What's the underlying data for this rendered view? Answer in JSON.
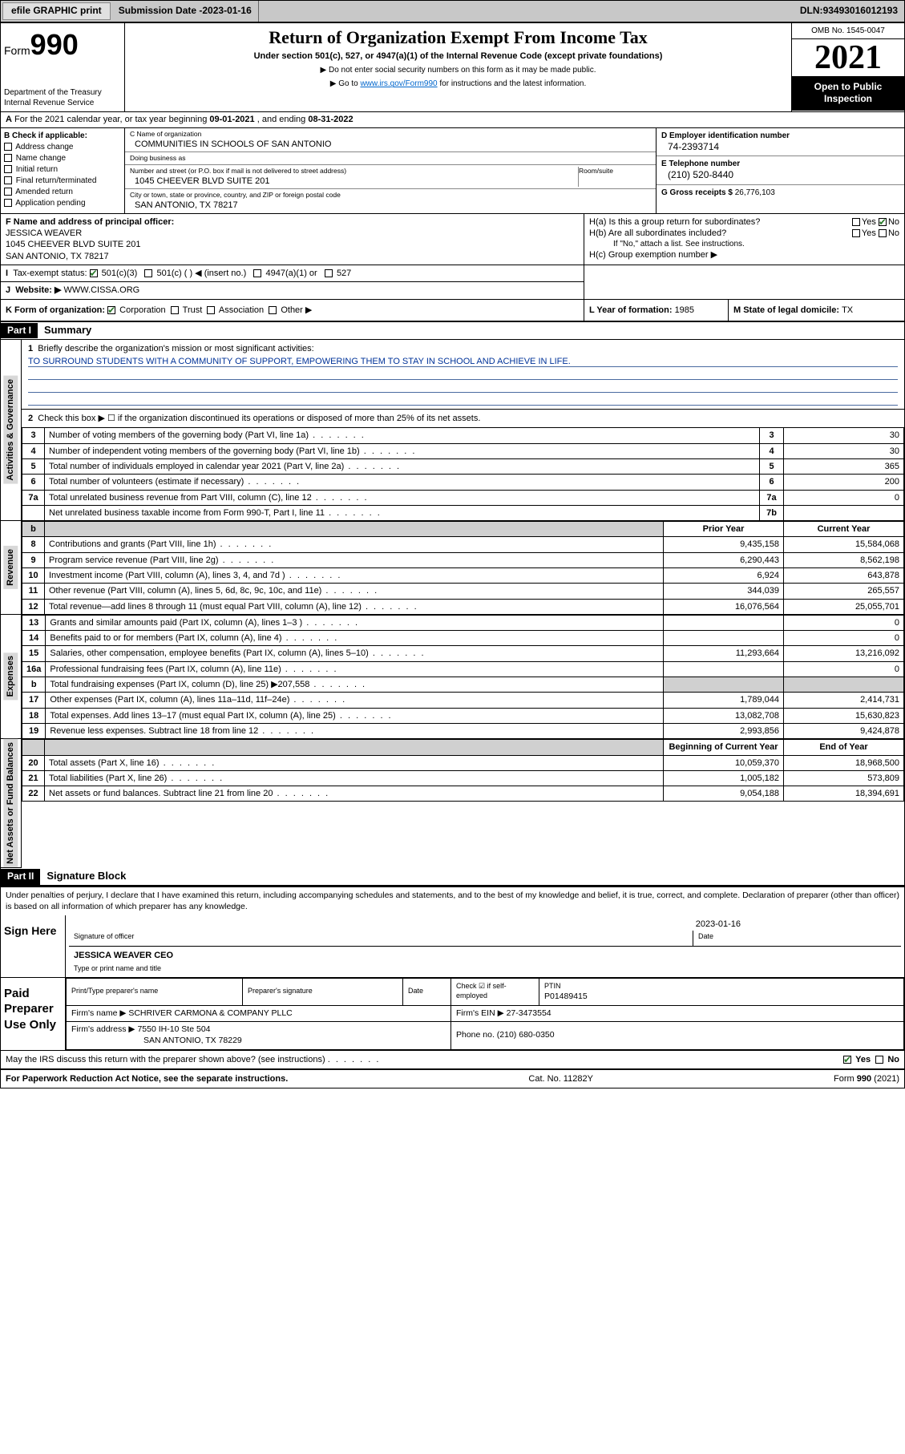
{
  "topbar": {
    "efile": "efile GRAPHIC print",
    "sub_label": "Submission Date - ",
    "sub_date": "2023-01-16",
    "dln_label": "DLN: ",
    "dln": "93493016012193"
  },
  "header": {
    "form_prefix": "Form",
    "form_num": "990",
    "dept": "Department of the Treasury\nInternal Revenue Service",
    "title": "Return of Organization Exempt From Income Tax",
    "subtitle": "Under section 501(c), 527, or 4947(a)(1) of the Internal Revenue Code (except private foundations)",
    "note1": "▶ Do not enter social security numbers on this form as it may be made public.",
    "note2_pre": "▶ Go to ",
    "note2_link": "www.irs.gov/Form990",
    "note2_post": " for instructions and the latest information.",
    "omb": "OMB No. 1545-0047",
    "year": "2021",
    "inspect": "Open to Public Inspection"
  },
  "row_a": {
    "label_a": "A",
    "text": "For the 2021 calendar year, or tax year beginning ",
    "begin": "09-01-2021",
    "mid": " , and ending ",
    "end": "08-31-2022"
  },
  "col_b": {
    "label": "B Check if applicable:",
    "items": [
      "Address change",
      "Name change",
      "Initial return",
      "Final return/terminated",
      "Amended return",
      "Application pending"
    ]
  },
  "col_c": {
    "name_lbl": "C Name of organization",
    "name": "COMMUNITIES IN SCHOOLS OF SAN ANTONIO",
    "dba_lbl": "Doing business as",
    "dba": "",
    "addr_lbl": "Number and street (or P.O. box if mail is not delivered to street address)",
    "room_lbl": "Room/suite",
    "addr": "1045 CHEEVER BLVD SUITE 201",
    "city_lbl": "City or town, state or province, country, and ZIP or foreign postal code",
    "city": "SAN ANTONIO, TX  78217"
  },
  "col_de": {
    "d_lbl": "D Employer identification number",
    "d_val": "74-2393714",
    "e_lbl": "E Telephone number",
    "e_val": "(210) 520-8440",
    "g_lbl": "G Gross receipts $ ",
    "g_val": "26,776,103"
  },
  "row_f": {
    "lbl": "F Name and address of principal officer:",
    "name": "JESSICA WEAVER",
    "addr1": "1045 CHEEVER BLVD SUITE 201",
    "addr2": "SAN ANTONIO, TX  78217"
  },
  "row_h": {
    "ha": "H(a)  Is this a group return for subordinates?",
    "hb": "H(b)  Are all subordinates included?",
    "hb_note": "If \"No,\" attach a list. See instructions.",
    "hc": "H(c)  Group exemption number ▶",
    "yes": "Yes",
    "no": "No"
  },
  "row_i": {
    "lbl": "Tax-exempt status:",
    "opts": [
      "501(c)(3)",
      "501(c) (  ) ◀ (insert no.)",
      "4947(a)(1) or",
      "527"
    ]
  },
  "row_j": {
    "lbl": "Website: ▶",
    "val": "WWW.CISSA.ORG"
  },
  "row_k": {
    "k": "K Form of organization:",
    "opts": [
      "Corporation",
      "Trust",
      "Association",
      "Other ▶"
    ],
    "l_lbl": "L Year of formation: ",
    "l_val": "1985",
    "m_lbl": "M State of legal domicile: ",
    "m_val": "TX"
  },
  "part1": {
    "label": "Part I",
    "title": "Summary",
    "q1": "Briefly describe the organization's mission or most significant activities:",
    "mission": "TO SURROUND STUDENTS WITH A COMMUNITY OF SUPPORT, EMPOWERING THEM TO STAY IN SCHOOL AND ACHIEVE IN LIFE.",
    "q2": "Check this box ▶ ☐  if the organization discontinued its operations or disposed of more than 25% of its net assets.",
    "sections": {
      "gov": "Activities & Governance",
      "rev": "Revenue",
      "exp": "Expenses",
      "net": "Net Assets or Fund Balances"
    },
    "col_hdrs": {
      "prior": "Prior Year",
      "current": "Current Year",
      "begin": "Beginning of Current Year",
      "end": "End of Year"
    },
    "lines_gov": [
      {
        "n": "3",
        "t": "Number of voting members of the governing body (Part VI, line 1a)",
        "box": "3",
        "v": "30"
      },
      {
        "n": "4",
        "t": "Number of independent voting members of the governing body (Part VI, line 1b)",
        "box": "4",
        "v": "30"
      },
      {
        "n": "5",
        "t": "Total number of individuals employed in calendar year 2021 (Part V, line 2a)",
        "box": "5",
        "v": "365"
      },
      {
        "n": "6",
        "t": "Total number of volunteers (estimate if necessary)",
        "box": "6",
        "v": "200"
      },
      {
        "n": "7a",
        "t": "Total unrelated business revenue from Part VIII, column (C), line 12",
        "box": "7a",
        "v": "0"
      },
      {
        "n": "",
        "t": "Net unrelated business taxable income from Form 990-T, Part I, line 11",
        "box": "7b",
        "v": ""
      }
    ],
    "lines_rev": [
      {
        "n": "8",
        "t": "Contributions and grants (Part VIII, line 1h)",
        "py": "9,435,158",
        "cy": "15,584,068"
      },
      {
        "n": "9",
        "t": "Program service revenue (Part VIII, line 2g)",
        "py": "6,290,443",
        "cy": "8,562,198"
      },
      {
        "n": "10",
        "t": "Investment income (Part VIII, column (A), lines 3, 4, and 7d )",
        "py": "6,924",
        "cy": "643,878"
      },
      {
        "n": "11",
        "t": "Other revenue (Part VIII, column (A), lines 5, 6d, 8c, 9c, 10c, and 11e)",
        "py": "344,039",
        "cy": "265,557"
      },
      {
        "n": "12",
        "t": "Total revenue—add lines 8 through 11 (must equal Part VIII, column (A), line 12)",
        "py": "16,076,564",
        "cy": "25,055,701"
      }
    ],
    "lines_exp": [
      {
        "n": "13",
        "t": "Grants and similar amounts paid (Part IX, column (A), lines 1–3 )",
        "py": "",
        "cy": "0"
      },
      {
        "n": "14",
        "t": "Benefits paid to or for members (Part IX, column (A), line 4)",
        "py": "",
        "cy": "0"
      },
      {
        "n": "15",
        "t": "Salaries, other compensation, employee benefits (Part IX, column (A), lines 5–10)",
        "py": "11,293,664",
        "cy": "13,216,092"
      },
      {
        "n": "16a",
        "t": "Professional fundraising fees (Part IX, column (A), line 11e)",
        "py": "",
        "cy": "0"
      },
      {
        "n": "b",
        "t": "Total fundraising expenses (Part IX, column (D), line 25) ▶207,558",
        "py": "shade",
        "cy": "shade"
      },
      {
        "n": "17",
        "t": "Other expenses (Part IX, column (A), lines 11a–11d, 11f–24e)",
        "py": "1,789,044",
        "cy": "2,414,731"
      },
      {
        "n": "18",
        "t": "Total expenses. Add lines 13–17 (must equal Part IX, column (A), line 25)",
        "py": "13,082,708",
        "cy": "15,630,823"
      },
      {
        "n": "19",
        "t": "Revenue less expenses. Subtract line 18 from line 12",
        "py": "2,993,856",
        "cy": "9,424,878"
      }
    ],
    "lines_net": [
      {
        "n": "20",
        "t": "Total assets (Part X, line 16)",
        "py": "10,059,370",
        "cy": "18,968,500"
      },
      {
        "n": "21",
        "t": "Total liabilities (Part X, line 26)",
        "py": "1,005,182",
        "cy": "573,809"
      },
      {
        "n": "22",
        "t": "Net assets or fund balances. Subtract line 21 from line 20",
        "py": "9,054,188",
        "cy": "18,394,691"
      }
    ]
  },
  "part2": {
    "label": "Part II",
    "title": "Signature Block",
    "decl": "Under penalties of perjury, I declare that I have examined this return, including accompanying schedules and statements, and to the best of my knowledge and belief, it is true, correct, and complete. Declaration of preparer (other than officer) is based on all information of which preparer has any knowledge.",
    "sign_here": "Sign Here",
    "sig_officer_lbl": "Signature of officer",
    "sig_date": "2023-01-16",
    "date_lbl": "Date",
    "officer_name": "JESSICA WEAVER CEO",
    "officer_lbl": "Type or print name and title",
    "paid": "Paid Preparer Use Only",
    "p_name_lbl": "Print/Type preparer's name",
    "p_sig_lbl": "Preparer's signature",
    "p_date_lbl": "Date",
    "p_check": "Check ☑ if self-employed",
    "ptin_lbl": "PTIN",
    "ptin": "P01489415",
    "firm_lbl": "Firm's name    ▶ ",
    "firm": "SCHRIVER CARMONA & COMPANY PLLC",
    "ein_lbl": "Firm's EIN ▶ ",
    "ein": "27-3473554",
    "faddr_lbl": "Firm's address ▶ ",
    "faddr1": "7550 IH-10 Ste 504",
    "faddr2": "SAN ANTONIO, TX  78229",
    "phone_lbl": "Phone no. ",
    "phone": "(210) 680-0350",
    "discuss": "May the IRS discuss this return with the preparer shown above? (see instructions)",
    "yes": "Yes",
    "no": "No"
  },
  "footer": {
    "left": "For Paperwork Reduction Act Notice, see the separate instructions.",
    "mid": "Cat. No. 11282Y",
    "right": "Form 990 (2021)"
  }
}
